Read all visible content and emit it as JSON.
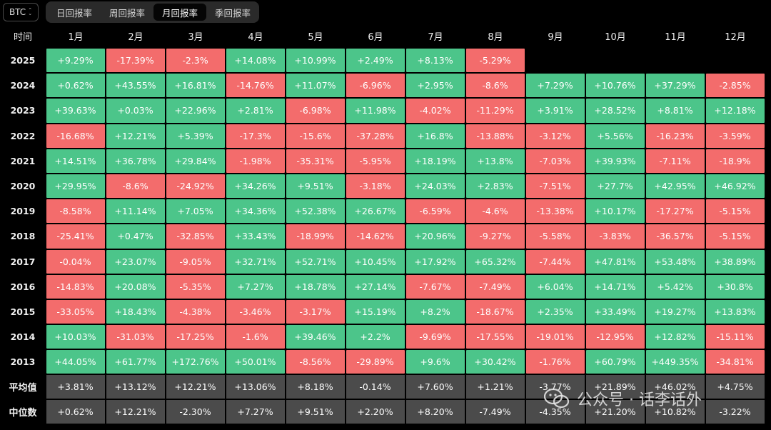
{
  "asset": "BTC",
  "tabs": [
    {
      "label": "日回报率",
      "active": false
    },
    {
      "label": "周回报率",
      "active": false
    },
    {
      "label": "月回报率",
      "active": true
    },
    {
      "label": "季回报率",
      "active": false
    }
  ],
  "colors": {
    "positive": "#4cc58a",
    "negative": "#f36c6c",
    "summary": "#4b4b4b"
  },
  "table": {
    "corner_label": "时间",
    "months": [
      "1月",
      "2月",
      "3月",
      "4月",
      "5月",
      "6月",
      "7月",
      "8月",
      "9月",
      "10月",
      "11月",
      "12月"
    ],
    "rows": [
      {
        "year": "2025",
        "values": [
          "+9.29%",
          "-17.39%",
          "-2.3%",
          "+14.08%",
          "+10.99%",
          "+2.49%",
          "+8.13%",
          "-5.29%",
          "",
          "",
          "",
          ""
        ]
      },
      {
        "year": "2024",
        "values": [
          "+0.62%",
          "+43.55%",
          "+16.81%",
          "-14.76%",
          "+11.07%",
          "-6.96%",
          "+2.95%",
          "-8.6%",
          "+7.29%",
          "+10.76%",
          "+37.29%",
          "-2.85%"
        ]
      },
      {
        "year": "2023",
        "values": [
          "+39.63%",
          "+0.03%",
          "+22.96%",
          "+2.81%",
          "-6.98%",
          "+11.98%",
          "-4.02%",
          "-11.29%",
          "+3.91%",
          "+28.52%",
          "+8.81%",
          "+12.18%"
        ]
      },
      {
        "year": "2022",
        "values": [
          "-16.68%",
          "+12.21%",
          "+5.39%",
          "-17.3%",
          "-15.6%",
          "-37.28%",
          "+16.8%",
          "-13.88%",
          "-3.12%",
          "+5.56%",
          "-16.23%",
          "-3.59%"
        ]
      },
      {
        "year": "2021",
        "values": [
          "+14.51%",
          "+36.78%",
          "+29.84%",
          "-1.98%",
          "-35.31%",
          "-5.95%",
          "+18.19%",
          "+13.8%",
          "-7.03%",
          "+39.93%",
          "-7.11%",
          "-18.9%"
        ]
      },
      {
        "year": "2020",
        "values": [
          "+29.95%",
          "-8.6%",
          "-24.92%",
          "+34.26%",
          "+9.51%",
          "-3.18%",
          "+24.03%",
          "+2.83%",
          "-7.51%",
          "+27.7%",
          "+42.95%",
          "+46.92%"
        ]
      },
      {
        "year": "2019",
        "values": [
          "-8.58%",
          "+11.14%",
          "+7.05%",
          "+34.36%",
          "+52.38%",
          "+26.67%",
          "-6.59%",
          "-4.6%",
          "-13.38%",
          "+10.17%",
          "-17.27%",
          "-5.15%"
        ]
      },
      {
        "year": "2018",
        "values": [
          "-25.41%",
          "+0.47%",
          "-32.85%",
          "+33.43%",
          "-18.99%",
          "-14.62%",
          "+20.96%",
          "-9.27%",
          "-5.58%",
          "-3.83%",
          "-36.57%",
          "-5.15%"
        ]
      },
      {
        "year": "2017",
        "values": [
          "-0.04%",
          "+23.07%",
          "-9.05%",
          "+32.71%",
          "+52.71%",
          "+10.45%",
          "+17.92%",
          "+65.32%",
          "-7.44%",
          "+47.81%",
          "+53.48%",
          "+38.89%"
        ]
      },
      {
        "year": "2016",
        "values": [
          "-14.83%",
          "+20.08%",
          "-5.35%",
          "+7.27%",
          "+18.78%",
          "+27.14%",
          "-7.67%",
          "-7.49%",
          "+6.04%",
          "+14.71%",
          "+5.42%",
          "+30.8%"
        ]
      },
      {
        "year": "2015",
        "values": [
          "-33.05%",
          "+18.43%",
          "-4.38%",
          "-3.46%",
          "-3.17%",
          "+15.19%",
          "+8.2%",
          "-18.67%",
          "+2.35%",
          "+33.49%",
          "+19.27%",
          "+13.83%"
        ]
      },
      {
        "year": "2014",
        "values": [
          "+10.03%",
          "-31.03%",
          "-17.25%",
          "-1.6%",
          "+39.46%",
          "+2.2%",
          "-9.69%",
          "-17.55%",
          "-19.01%",
          "-12.95%",
          "+12.82%",
          "-15.11%"
        ]
      },
      {
        "year": "2013",
        "values": [
          "+44.05%",
          "+61.77%",
          "+172.76%",
          "+50.01%",
          "-8.56%",
          "-29.89%",
          "+9.6%",
          "+30.42%",
          "-1.76%",
          "+60.79%",
          "+449.35%",
          "-34.81%"
        ]
      }
    ],
    "summary": [
      {
        "label": "平均值",
        "values": [
          "+3.81%",
          "+13.12%",
          "+12.21%",
          "+13.06%",
          "+8.18%",
          "-0.14%",
          "+7.60%",
          "+1.21%",
          "-3.77%",
          "+21.89%",
          "+46.02%",
          "+4.75%"
        ]
      },
      {
        "label": "中位数",
        "values": [
          "+0.62%",
          "+12.21%",
          "-2.30%",
          "+7.27%",
          "+9.51%",
          "+2.20%",
          "+8.20%",
          "-7.49%",
          "-4.35%",
          "+21.20%",
          "+10.82%",
          "-3.22%"
        ]
      }
    ]
  },
  "watermark": {
    "text": "公众号 · 话李话外",
    "icon": "wechat-icon"
  }
}
